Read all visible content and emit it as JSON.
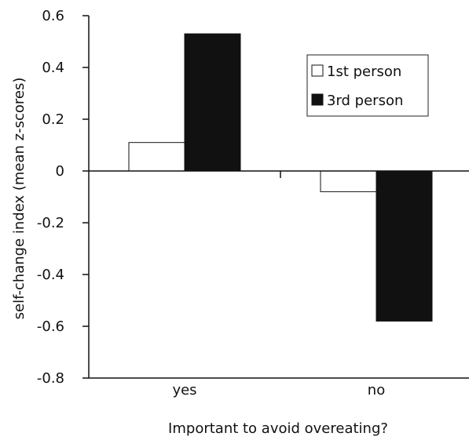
{
  "chart_data": {
    "type": "bar",
    "title": "",
    "xlabel": "Important to avoid overeating?",
    "ylabel": "self-change index (mean z-scores)",
    "ylim": [
      -0.8,
      0.6
    ],
    "yticks": [
      0.6,
      0.4,
      0.2,
      0,
      -0.2,
      -0.4,
      -0.6,
      -0.8
    ],
    "ytick_labels": [
      "0.6",
      "0.4",
      "0.2",
      "0",
      "-0.2",
      "-0.4",
      "-0.6",
      "-0.8"
    ],
    "categories": [
      "yes",
      "no"
    ],
    "series": [
      {
        "name": "1st person",
        "values": [
          0.11,
          -0.08
        ],
        "color": "#ffffff"
      },
      {
        "name": "3rd person",
        "values": [
          0.53,
          -0.58
        ],
        "color": "#111111"
      }
    ],
    "legend_position": "top-right",
    "grid": false
  }
}
